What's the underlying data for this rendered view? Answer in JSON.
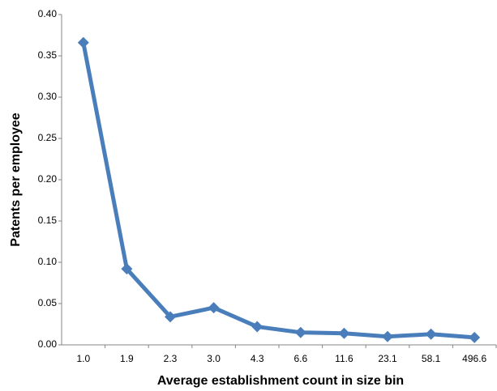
{
  "chart_data": {
    "type": "line",
    "y_label": "Patents per employee",
    "x_label": "Average establishment count in size bin",
    "categories": [
      "1.0",
      "1.9",
      "2.3",
      "3.0",
      "4.3",
      "6.6",
      "11.6",
      "23.1",
      "58.1",
      "496.6"
    ],
    "series": [
      {
        "name": "Patents per employee",
        "color": "#4a7ebb",
        "values": [
          0.366,
          0.092,
          0.034,
          0.045,
          0.022,
          0.015,
          0.014,
          0.01,
          0.013,
          0.009
        ]
      }
    ],
    "ylim": [
      0,
      0.4
    ],
    "yticks": [
      {
        "value": 0,
        "label": "0.00"
      },
      {
        "value": 0.05,
        "label": "0.05"
      },
      {
        "value": 0.1,
        "label": "0.10"
      },
      {
        "value": 0.15,
        "label": "0.15"
      },
      {
        "value": 0.2,
        "label": "0.20"
      },
      {
        "value": 0.25,
        "label": "0.25"
      },
      {
        "value": 0.3,
        "label": "0.30"
      },
      {
        "value": 0.35,
        "label": "0.35"
      },
      {
        "value": 0.4,
        "label": "0.40"
      }
    ],
    "grid": false
  }
}
